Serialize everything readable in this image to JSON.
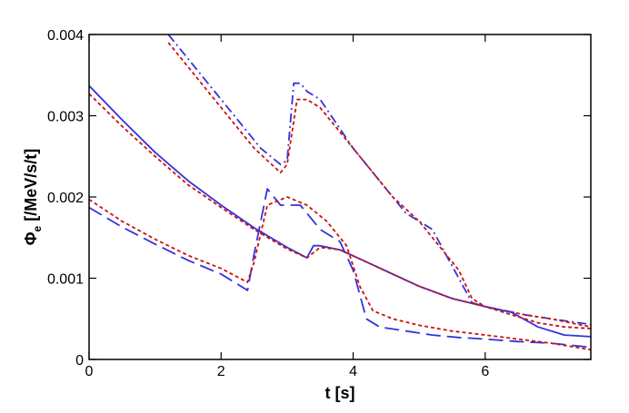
{
  "chart_data": {
    "type": "line",
    "title": "",
    "xlabel": "t [s]",
    "ylabel_main": "Φ",
    "ylabel_sub": "e",
    "ylabel_rest": " [/MeV/s/t]",
    "xlim": [
      0,
      7.6
    ],
    "ylim": [
      0,
      0.004
    ],
    "xticks": [
      0,
      2,
      4,
      6
    ],
    "xtick_labels": [
      "0",
      "2",
      "4",
      "6"
    ],
    "yticks": [
      0,
      0.001,
      0.002,
      0.003,
      0.004
    ],
    "ytick_labels": [
      "0",
      "0.001",
      "0.002",
      "0.003",
      "0.004"
    ],
    "grid": false,
    "legend": false,
    "series": [
      {
        "color": "#3333dd",
        "dash": "dashdot",
        "x": [
          1.2,
          2.0,
          2.6,
          2.9,
          3.0,
          3.1,
          3.2,
          3.3,
          3.5,
          4.0,
          4.3,
          4.5,
          4.8,
          5.0,
          5.2,
          5.4,
          5.6,
          5.8,
          6.0,
          6.3,
          6.6,
          7.0,
          7.6
        ],
        "y": [
          0.004,
          0.0032,
          0.0026,
          0.0024,
          0.00245,
          0.0034,
          0.0034,
          0.0033,
          0.0032,
          0.0026,
          0.0023,
          0.0021,
          0.0018,
          0.0017,
          0.0016,
          0.0013,
          0.001,
          0.0007,
          0.00065,
          0.0006,
          0.00055,
          0.0005,
          0.00043
        ]
      },
      {
        "color": "#cc1111",
        "dash": "dotted",
        "x": [
          1.2,
          2.0,
          2.5,
          2.9,
          3.0,
          3.15,
          3.3,
          3.5,
          4.0,
          4.3,
          4.6,
          5.0,
          5.3,
          5.6,
          5.8,
          6.0,
          6.3,
          6.6,
          7.0,
          7.6
        ],
        "y": [
          0.0039,
          0.0031,
          0.0026,
          0.0023,
          0.0024,
          0.0032,
          0.0032,
          0.0031,
          0.0026,
          0.0023,
          0.002,
          0.0017,
          0.0014,
          0.0011,
          0.00075,
          0.00065,
          0.0006,
          0.00055,
          0.0005,
          0.0004
        ]
      },
      {
        "color": "#3333dd",
        "dash": "solid",
        "x": [
          0,
          0.5,
          1.0,
          1.5,
          2.0,
          2.5,
          3.0,
          3.3,
          3.4,
          3.5,
          3.8,
          4.2,
          4.6,
          5.0,
          5.5,
          6.0,
          6.4,
          6.8,
          7.2,
          7.6
        ],
        "y": [
          0.00337,
          0.00295,
          0.00255,
          0.0022,
          0.0019,
          0.00162,
          0.00138,
          0.00125,
          0.0014,
          0.0014,
          0.00135,
          0.0012,
          0.00105,
          0.0009,
          0.00075,
          0.00065,
          0.00058,
          0.0004,
          0.0003,
          0.00028
        ]
      },
      {
        "color": "#cc1111",
        "dash": "dotted",
        "x": [
          0,
          0.5,
          1.0,
          1.5,
          2.0,
          2.5,
          3.0,
          3.3,
          3.5,
          3.8,
          4.2,
          4.6,
          5.0,
          5.5,
          6.0,
          6.4,
          6.8,
          7.2,
          7.6
        ],
        "y": [
          0.00327,
          0.00287,
          0.0025,
          0.00215,
          0.00187,
          0.0016,
          0.00136,
          0.00125,
          0.00138,
          0.00135,
          0.0012,
          0.00105,
          0.0009,
          0.00075,
          0.00065,
          0.00055,
          0.00045,
          0.0004,
          0.00038
        ]
      },
      {
        "color": "#3333dd",
        "dash": "longdash",
        "x": [
          0,
          0.5,
          1.0,
          1.5,
          2.0,
          2.4,
          2.5,
          2.7,
          2.9,
          3.2,
          3.5,
          3.8,
          4.0,
          4.2,
          4.4,
          4.8,
          5.2,
          5.6,
          6.0,
          6.5,
          7.0,
          7.6
        ],
        "y": [
          0.00187,
          0.00163,
          0.00142,
          0.00122,
          0.00105,
          0.00085,
          0.0013,
          0.0021,
          0.0019,
          0.0019,
          0.0016,
          0.00145,
          0.0011,
          0.0005,
          0.0004,
          0.00035,
          0.0003,
          0.00027,
          0.00025,
          0.00022,
          0.0002,
          0.00015
        ]
      },
      {
        "color": "#cc1111",
        "dash": "dotted",
        "x": [
          0,
          0.5,
          1.0,
          1.5,
          2.0,
          2.4,
          2.5,
          2.7,
          3.0,
          3.3,
          3.6,
          3.9,
          4.1,
          4.3,
          4.6,
          5.0,
          5.5,
          6.0,
          6.5,
          7.0,
          7.6
        ],
        "y": [
          0.00197,
          0.0017,
          0.00148,
          0.00128,
          0.00112,
          0.00095,
          0.0012,
          0.0019,
          0.002,
          0.0019,
          0.0017,
          0.0014,
          0.0009,
          0.0006,
          0.0005,
          0.00042,
          0.00035,
          0.0003,
          0.00025,
          0.0002,
          0.00012
        ]
      }
    ]
  }
}
